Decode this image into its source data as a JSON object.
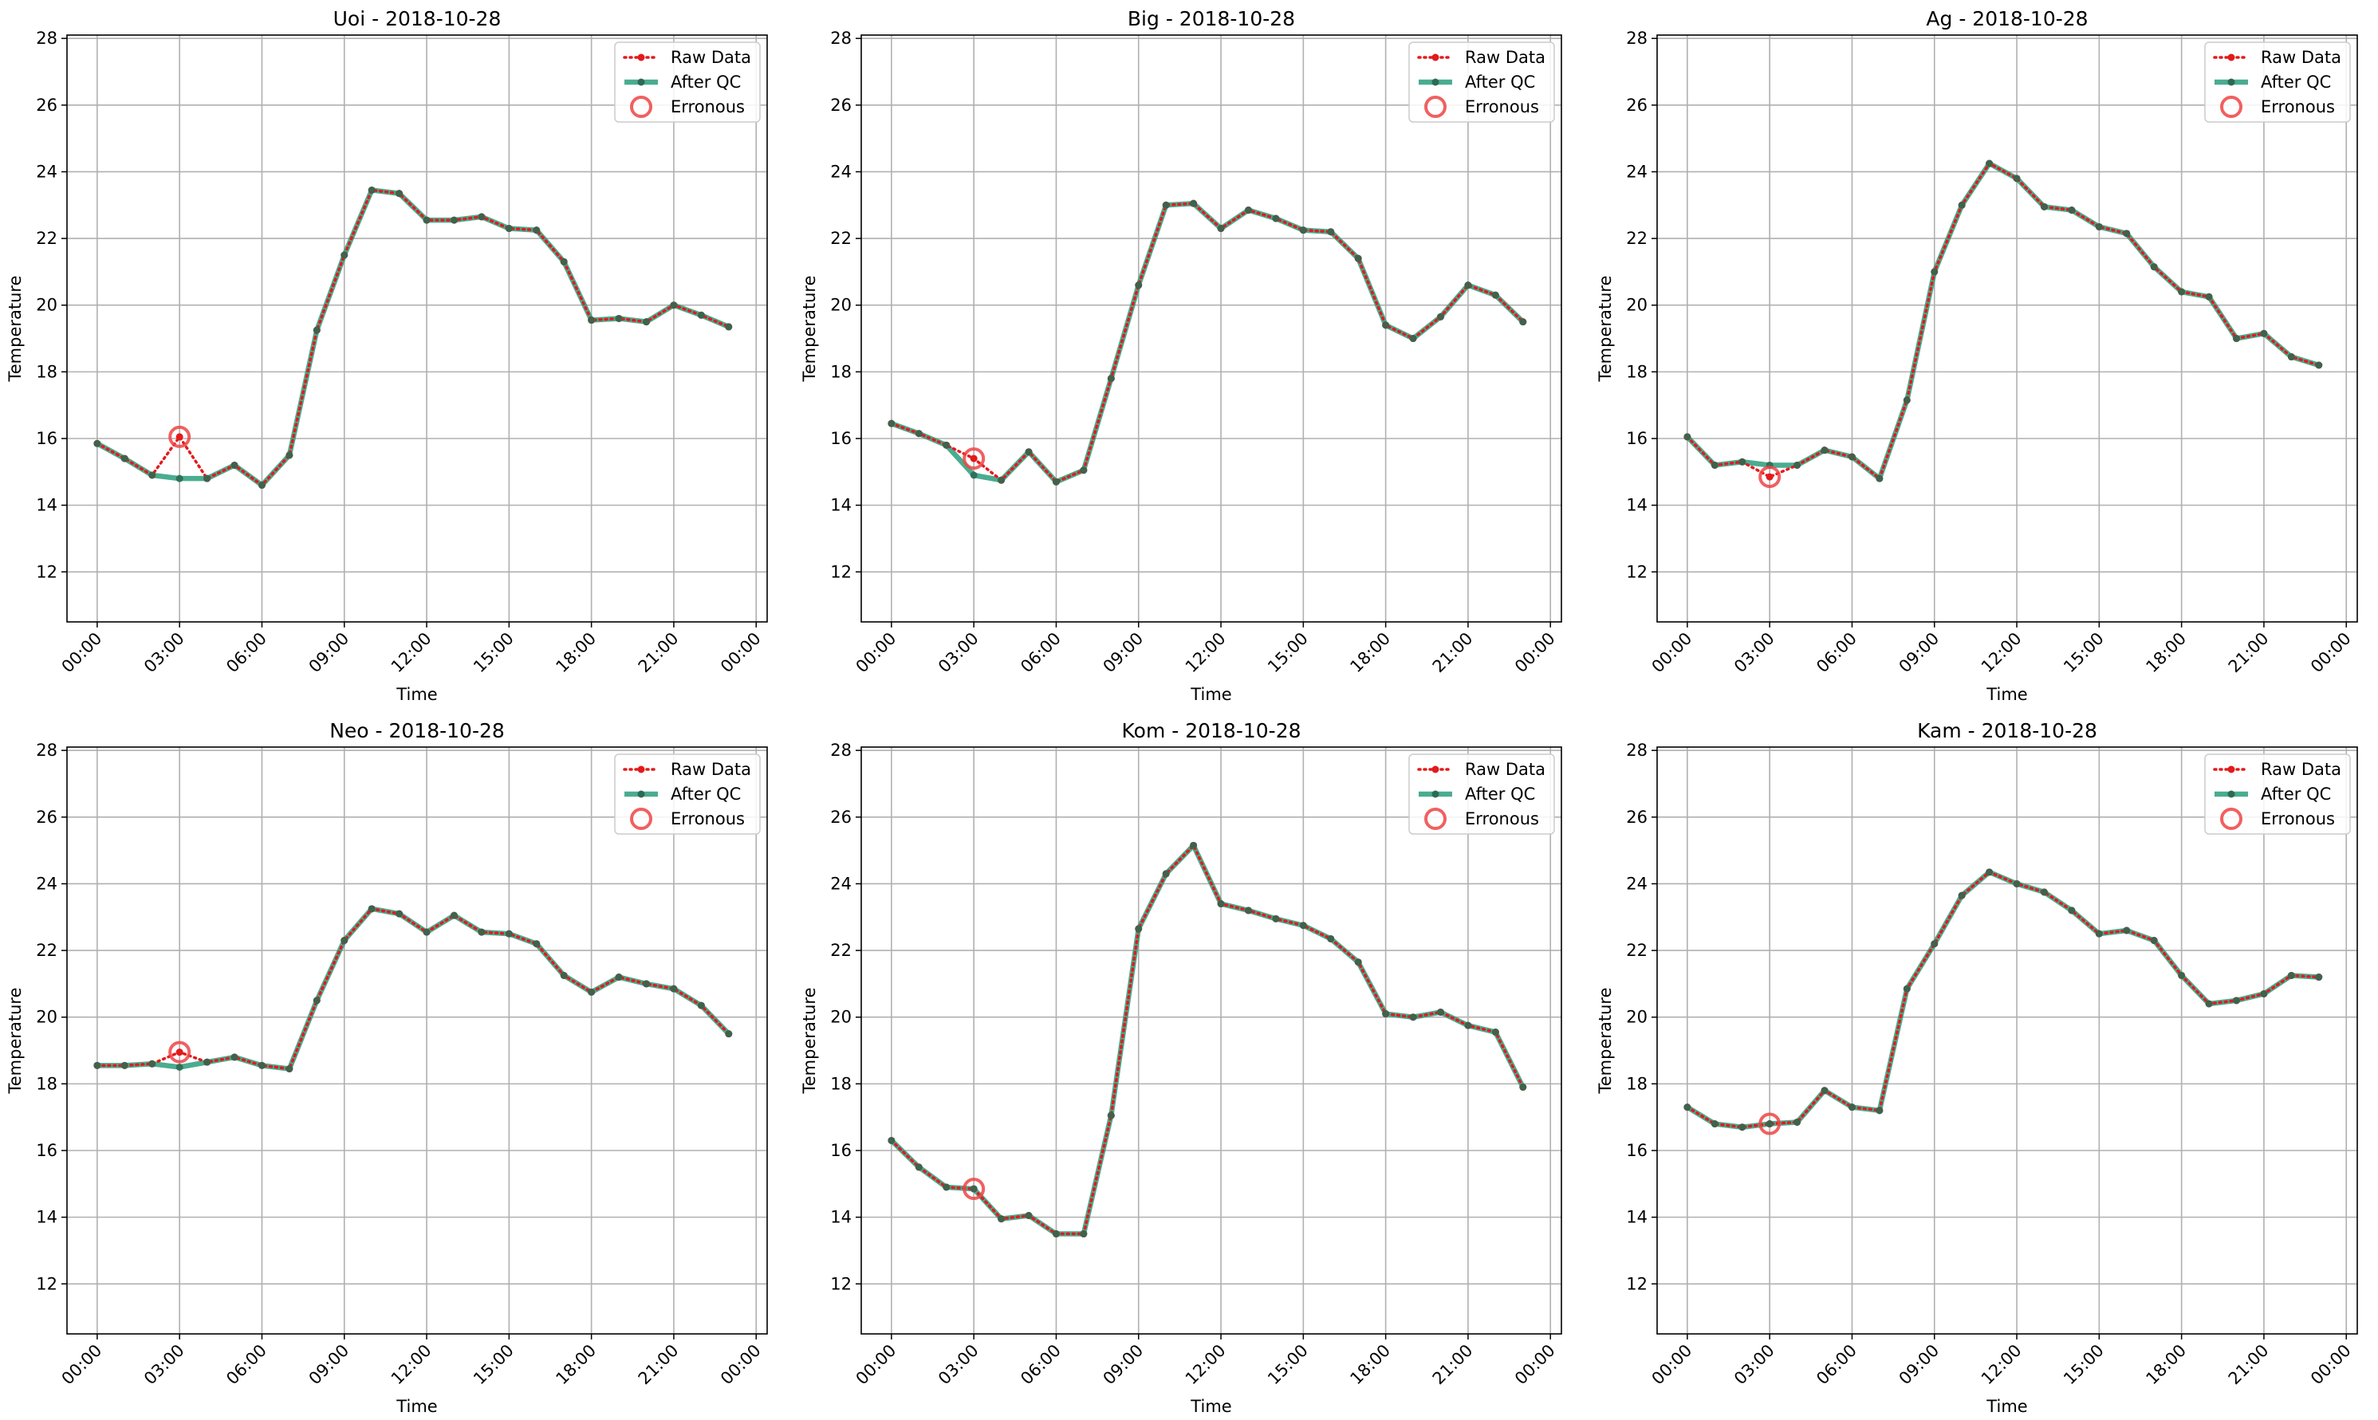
{
  "chart_data": [
    {
      "type": "line",
      "title": "Uoi - 2018-10-28",
      "xlabel": "Time",
      "ylabel": "Temperature",
      "ylim": [
        10.5,
        28.1
      ],
      "yticks": [
        12,
        14,
        16,
        18,
        20,
        22,
        24,
        26,
        28
      ],
      "xticks": [
        "00:00",
        "03:00",
        "06:00",
        "09:00",
        "12:00",
        "15:00",
        "18:00",
        "21:00",
        "00:00"
      ],
      "grid": true,
      "legend_position": "top-right",
      "legend": [
        "Raw Data",
        "After QC",
        "Erronous"
      ],
      "hours": [
        0,
        1,
        2,
        3,
        4,
        5,
        6,
        7,
        8,
        9,
        10,
        11,
        12,
        13,
        14,
        15,
        16,
        17,
        18,
        19,
        20,
        21,
        22,
        23
      ],
      "raw": [
        15.85,
        15.4,
        14.9,
        16.05,
        14.8,
        15.2,
        14.6,
        15.5,
        19.25,
        21.5,
        23.45,
        23.35,
        22.55,
        22.55,
        22.65,
        22.3,
        22.25,
        21.3,
        19.55,
        19.6,
        19.5,
        20.0,
        19.7,
        19.35
      ],
      "qc": [
        15.85,
        15.4,
        14.9,
        14.8,
        14.8,
        15.2,
        14.6,
        15.5,
        19.25,
        21.5,
        23.45,
        23.35,
        22.55,
        22.55,
        22.65,
        22.3,
        22.25,
        21.3,
        19.55,
        19.6,
        19.5,
        20.0,
        19.7,
        19.35
      ],
      "erroneous": [
        {
          "hour": 3,
          "value": 16.05
        }
      ]
    },
    {
      "type": "line",
      "title": "Big - 2018-10-28",
      "xlabel": "Time",
      "ylabel": "Temperature",
      "ylim": [
        10.5,
        28.1
      ],
      "yticks": [
        12,
        14,
        16,
        18,
        20,
        22,
        24,
        26,
        28
      ],
      "xticks": [
        "00:00",
        "03:00",
        "06:00",
        "09:00",
        "12:00",
        "15:00",
        "18:00",
        "21:00",
        "00:00"
      ],
      "grid": true,
      "legend_position": "top-right",
      "legend": [
        "Raw Data",
        "After QC",
        "Erronous"
      ],
      "hours": [
        0,
        1,
        2,
        3,
        4,
        5,
        6,
        7,
        8,
        9,
        10,
        11,
        12,
        13,
        14,
        15,
        16,
        17,
        18,
        19,
        20,
        21,
        22,
        23
      ],
      "raw": [
        16.45,
        16.15,
        15.8,
        15.4,
        14.75,
        15.6,
        14.7,
        15.05,
        17.8,
        20.6,
        23.0,
        23.05,
        22.3,
        22.85,
        22.6,
        22.25,
        22.2,
        21.4,
        19.4,
        19.0,
        19.65,
        20.6,
        20.3,
        19.5
      ],
      "qc": [
        16.45,
        16.15,
        15.8,
        14.9,
        14.75,
        15.6,
        14.7,
        15.05,
        17.8,
        20.6,
        23.0,
        23.05,
        22.3,
        22.85,
        22.6,
        22.25,
        22.2,
        21.4,
        19.4,
        19.0,
        19.65,
        20.6,
        20.3,
        19.5
      ],
      "erroneous": [
        {
          "hour": 3,
          "value": 15.4
        }
      ]
    },
    {
      "type": "line",
      "title": "Ag - 2018-10-28",
      "xlabel": "Time",
      "ylabel": "Temperature",
      "ylim": [
        10.5,
        28.1
      ],
      "yticks": [
        12,
        14,
        16,
        18,
        20,
        22,
        24,
        26,
        28
      ],
      "xticks": [
        "00:00",
        "03:00",
        "06:00",
        "09:00",
        "12:00",
        "15:00",
        "18:00",
        "21:00",
        "00:00"
      ],
      "grid": true,
      "legend_position": "top-right",
      "legend": [
        "Raw Data",
        "After QC",
        "Erronous"
      ],
      "hours": [
        0,
        1,
        2,
        3,
        4,
        5,
        6,
        7,
        8,
        9,
        10,
        11,
        12,
        13,
        14,
        15,
        16,
        17,
        18,
        19,
        20,
        21,
        22,
        23
      ],
      "raw": [
        16.05,
        15.2,
        15.3,
        14.85,
        15.2,
        15.65,
        15.45,
        14.8,
        17.15,
        21.0,
        23.0,
        24.25,
        23.8,
        22.95,
        22.85,
        22.35,
        22.15,
        21.15,
        20.4,
        20.25,
        19.0,
        19.15,
        18.45,
        18.2
      ],
      "qc": [
        16.05,
        15.2,
        15.3,
        15.2,
        15.2,
        15.65,
        15.45,
        14.8,
        17.15,
        21.0,
        23.0,
        24.25,
        23.8,
        22.95,
        22.85,
        22.35,
        22.15,
        21.15,
        20.4,
        20.25,
        19.0,
        19.15,
        18.45,
        18.2
      ],
      "erroneous": [
        {
          "hour": 3,
          "value": 14.85
        }
      ]
    },
    {
      "type": "line",
      "title": "Neo - 2018-10-28",
      "xlabel": "Time",
      "ylabel": "Temperature",
      "ylim": [
        10.5,
        28.1
      ],
      "yticks": [
        12,
        14,
        16,
        18,
        20,
        22,
        24,
        26,
        28
      ],
      "xticks": [
        "00:00",
        "03:00",
        "06:00",
        "09:00",
        "12:00",
        "15:00",
        "18:00",
        "21:00",
        "00:00"
      ],
      "grid": true,
      "legend_position": "top-right",
      "legend": [
        "Raw Data",
        "After QC",
        "Erronous"
      ],
      "hours": [
        0,
        1,
        2,
        3,
        4,
        5,
        6,
        7,
        8,
        9,
        10,
        11,
        12,
        13,
        14,
        15,
        16,
        17,
        18,
        19,
        20,
        21,
        22,
        23
      ],
      "raw": [
        18.55,
        18.55,
        18.6,
        18.95,
        18.65,
        18.8,
        18.55,
        18.45,
        20.5,
        22.3,
        23.25,
        23.1,
        22.55,
        23.05,
        22.55,
        22.5,
        22.2,
        21.25,
        20.75,
        21.2,
        21.0,
        20.85,
        20.35,
        19.5
      ],
      "qc": [
        18.55,
        18.55,
        18.6,
        18.5,
        18.65,
        18.8,
        18.55,
        18.45,
        20.5,
        22.3,
        23.25,
        23.1,
        22.55,
        23.05,
        22.55,
        22.5,
        22.2,
        21.25,
        20.75,
        21.2,
        21.0,
        20.85,
        20.35,
        19.5
      ],
      "erroneous": [
        {
          "hour": 3,
          "value": 18.95
        }
      ]
    },
    {
      "type": "line",
      "title": "Kom - 2018-10-28",
      "xlabel": "Time",
      "ylabel": "Temperature",
      "ylim": [
        10.5,
        28.1
      ],
      "yticks": [
        12,
        14,
        16,
        18,
        20,
        22,
        24,
        26,
        28
      ],
      "xticks": [
        "00:00",
        "03:00",
        "06:00",
        "09:00",
        "12:00",
        "15:00",
        "18:00",
        "21:00",
        "00:00"
      ],
      "grid": true,
      "legend_position": "top-right",
      "legend": [
        "Raw Data",
        "After QC",
        "Erronous"
      ],
      "hours": [
        0,
        1,
        2,
        3,
        4,
        5,
        6,
        7,
        8,
        9,
        10,
        11,
        12,
        13,
        14,
        15,
        16,
        17,
        18,
        19,
        20,
        21,
        22,
        23
      ],
      "raw": [
        16.3,
        15.5,
        14.9,
        14.85,
        13.95,
        14.05,
        13.5,
        13.5,
        17.05,
        22.65,
        24.3,
        25.15,
        23.4,
        23.2,
        22.95,
        22.75,
        22.35,
        21.65,
        20.1,
        20.0,
        20.15,
        19.75,
        19.55,
        17.9
      ],
      "qc": [
        16.3,
        15.5,
        14.9,
        14.85,
        13.95,
        14.05,
        13.5,
        13.5,
        17.05,
        22.65,
        24.3,
        25.15,
        23.4,
        23.2,
        22.95,
        22.75,
        22.35,
        21.65,
        20.1,
        20.0,
        20.15,
        19.75,
        19.55,
        17.9
      ],
      "erroneous": [
        {
          "hour": 3,
          "value": 14.85
        }
      ]
    },
    {
      "type": "line",
      "title": "Kam - 2018-10-28",
      "xlabel": "Time",
      "ylabel": "Temperature",
      "ylim": [
        10.5,
        28.1
      ],
      "yticks": [
        12,
        14,
        16,
        18,
        20,
        22,
        24,
        26,
        28
      ],
      "xticks": [
        "00:00",
        "03:00",
        "06:00",
        "09:00",
        "12:00",
        "15:00",
        "18:00",
        "21:00",
        "00:00"
      ],
      "grid": true,
      "legend_position": "top-right",
      "legend": [
        "Raw Data",
        "After QC",
        "Erronous"
      ],
      "hours": [
        0,
        1,
        2,
        3,
        4,
        5,
        6,
        7,
        8,
        9,
        10,
        11,
        12,
        13,
        14,
        15,
        16,
        17,
        18,
        19,
        20,
        21,
        22,
        23
      ],
      "raw": [
        17.3,
        16.8,
        16.7,
        16.8,
        16.85,
        17.8,
        17.3,
        17.2,
        20.85,
        22.2,
        23.65,
        24.35,
        24.0,
        23.75,
        23.2,
        22.5,
        22.6,
        22.3,
        21.25,
        20.4,
        20.5,
        20.7,
        21.25,
        21.2
      ],
      "qc": [
        17.3,
        16.8,
        16.7,
        16.8,
        16.85,
        17.8,
        17.3,
        17.2,
        20.85,
        22.2,
        23.65,
        24.35,
        24.0,
        23.75,
        23.2,
        22.5,
        22.6,
        22.3,
        21.25,
        20.4,
        20.5,
        20.7,
        21.25,
        21.2
      ],
      "erroneous": [
        {
          "hour": 3,
          "value": 16.8
        }
      ]
    }
  ],
  "colors": {
    "raw": "#e31a1c",
    "qc": "#2a9d7c",
    "qc_marker": "#2d6a53",
    "erroneous": "#ef4444",
    "grid": "#b0b0b0",
    "axis": "#000000"
  }
}
